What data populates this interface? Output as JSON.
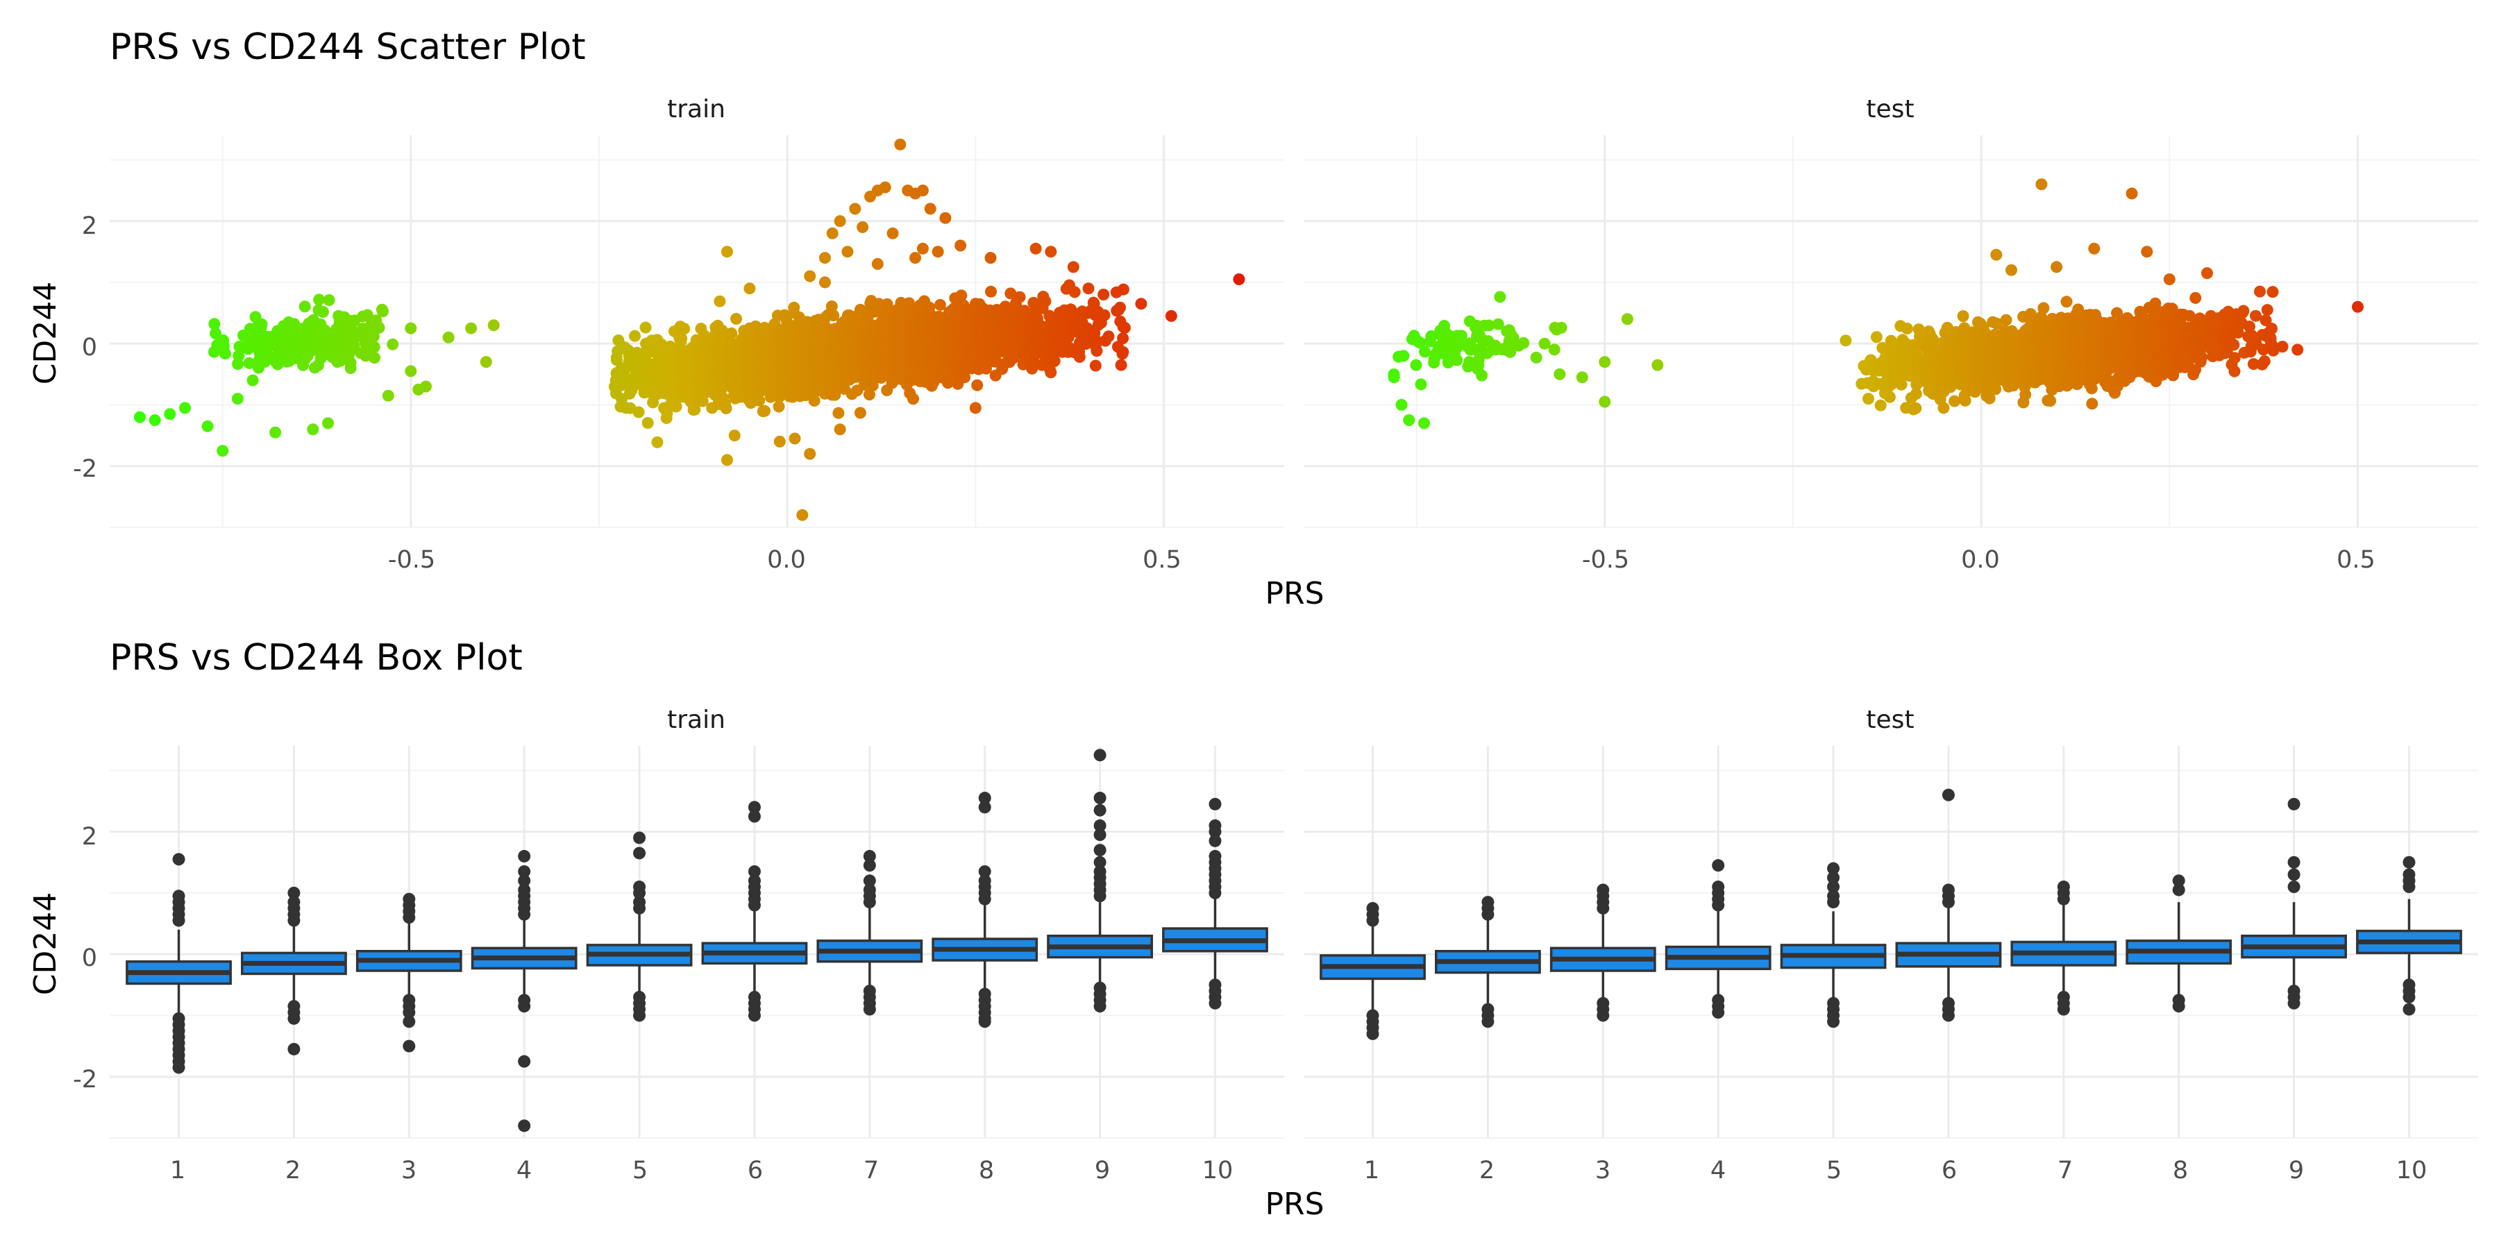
{
  "chart_data": [
    {
      "type": "scatter",
      "title": "PRS vs CD244 Scatter Plot",
      "xlabel": "PRS",
      "ylabel": "CD244",
      "xlim": [
        -0.9,
        0.66
      ],
      "ylim": [
        -3.0,
        3.4
      ],
      "x_ticks": [
        -0.5,
        0.0,
        0.5
      ],
      "x_tick_labels": [
        "-0.5",
        "0.0",
        "0.5"
      ],
      "y_ticks": [
        -2,
        0,
        2
      ],
      "y_tick_labels": [
        "-2",
        "0",
        "2"
      ],
      "grid": true,
      "legend": "none",
      "color_scale": {
        "low": "#33ff00",
        "mid": "#cfb000",
        "high": "#e41a00",
        "mapped_to": "PRS"
      },
      "panels": [
        {
          "strip": "train",
          "clusters": [
            {
              "x_range": [
                -0.75,
                -0.55
              ],
              "x_mean": -0.64,
              "slope": 1.3,
              "intercept": 0.05,
              "y_sd": 0.22,
              "n": 260
            },
            {
              "x_range": [
                -0.2,
                0.42
              ],
              "x_mean": 0.08,
              "slope": 1.2,
              "intercept": -0.15,
              "y_sd": 0.28,
              "n": 3000
            }
          ],
          "points": [
            [
              -0.86,
              -1.2
            ],
            [
              -0.84,
              -1.25
            ],
            [
              -0.82,
              -1.15
            ],
            [
              -0.8,
              -1.05
            ],
            [
              -0.77,
              -1.35
            ],
            [
              -0.75,
              -1.75
            ],
            [
              -0.73,
              -0.9
            ],
            [
              -0.71,
              -0.6
            ],
            [
              -0.68,
              -1.45
            ],
            [
              -0.66,
              -0.15
            ],
            [
              -0.63,
              -1.4
            ],
            [
              -0.61,
              -1.3
            ],
            [
              -0.58,
              -0.4
            ],
            [
              -0.56,
              -0.2
            ],
            [
              -0.53,
              -0.85
            ],
            [
              -0.5,
              -0.45
            ],
            [
              -0.49,
              -0.75
            ],
            [
              -0.48,
              -0.7
            ],
            [
              -0.5,
              0.25
            ],
            [
              -0.45,
              0.1
            ],
            [
              -0.42,
              0.25
            ],
            [
              -0.39,
              0.3
            ],
            [
              -0.4,
              -0.3
            ],
            [
              -0.2,
              -0.35
            ],
            [
              -0.19,
              -0.8
            ],
            [
              -0.18,
              0.05
            ],
            [
              -0.15,
              0.2
            ],
            [
              -0.12,
              -0.9
            ],
            [
              -0.1,
              -1.05
            ],
            [
              -0.08,
              1.5
            ],
            [
              -0.08,
              -1.9
            ],
            [
              -0.07,
              -1.5
            ],
            [
              -0.05,
              0.9
            ],
            [
              -0.03,
              -1.1
            ],
            [
              -0.01,
              -1.6
            ],
            [
              0.01,
              -1.55
            ],
            [
              0.02,
              -2.8
            ],
            [
              0.03,
              -1.8
            ],
            [
              0.03,
              1.1
            ],
            [
              0.05,
              1.4
            ],
            [
              0.05,
              1.0
            ],
            [
              0.06,
              1.8
            ],
            [
              0.07,
              2.0
            ],
            [
              0.07,
              -1.4
            ],
            [
              0.08,
              1.5
            ],
            [
              0.09,
              2.2
            ],
            [
              0.1,
              1.9
            ],
            [
              0.11,
              2.4
            ],
            [
              0.12,
              2.5
            ],
            [
              0.12,
              1.3
            ],
            [
              0.13,
              2.55
            ],
            [
              0.14,
              1.8
            ],
            [
              0.15,
              3.25
            ],
            [
              0.16,
              2.5
            ],
            [
              0.17,
              2.45
            ],
            [
              0.17,
              1.4
            ],
            [
              0.18,
              2.5
            ],
            [
              0.18,
              1.55
            ],
            [
              0.19,
              2.2
            ],
            [
              0.2,
              1.5
            ],
            [
              0.21,
              2.05
            ],
            [
              0.23,
              1.6
            ],
            [
              0.25,
              -1.05
            ],
            [
              0.27,
              1.4
            ],
            [
              0.33,
              1.55
            ],
            [
              0.35,
              1.5
            ],
            [
              0.38,
              1.25
            ],
            [
              0.4,
              0.9
            ],
            [
              0.42,
              0.8
            ],
            [
              0.44,
              0.55
            ],
            [
              0.47,
              0.65
            ],
            [
              0.51,
              0.45
            ],
            [
              0.6,
              1.05
            ]
          ]
        },
        {
          "strip": "test",
          "clusters": [
            {
              "x_range": [
                -0.77,
                -0.57
              ],
              "x_mean": -0.68,
              "slope": 1.3,
              "intercept": 0.0,
              "y_sd": 0.2,
              "n": 90
            },
            {
              "x_range": [
                -0.13,
                0.36
              ],
              "x_mean": 0.1,
              "slope": 1.1,
              "intercept": -0.15,
              "y_sd": 0.26,
              "n": 1700
            }
          ],
          "points": [
            [
              -0.78,
              -0.55
            ],
            [
              -0.77,
              -1.0
            ],
            [
              -0.76,
              -1.25
            ],
            [
              -0.74,
              -1.3
            ],
            [
              -0.72,
              0.15
            ],
            [
              -0.68,
              -0.3
            ],
            [
              -0.63,
              0.2
            ],
            [
              -0.58,
              0.0
            ],
            [
              -0.56,
              -0.5
            ],
            [
              -0.53,
              -0.55
            ],
            [
              -0.5,
              -0.95
            ],
            [
              -0.5,
              -0.3
            ],
            [
              -0.47,
              0.4
            ],
            [
              -0.43,
              -0.35
            ],
            [
              -0.18,
              0.05
            ],
            [
              -0.15,
              -0.9
            ],
            [
              -0.1,
              -1.05
            ],
            [
              -0.05,
              -1.05
            ],
            [
              0.02,
              1.45
            ],
            [
              0.04,
              1.2
            ],
            [
              0.08,
              2.6
            ],
            [
              0.1,
              1.25
            ],
            [
              0.15,
              1.55
            ],
            [
              0.2,
              2.45
            ],
            [
              0.22,
              1.5
            ],
            [
              0.25,
              1.05
            ],
            [
              0.3,
              1.15
            ],
            [
              0.37,
              0.85
            ],
            [
              0.38,
              0.55
            ],
            [
              0.4,
              -0.05
            ],
            [
              0.42,
              -0.1
            ],
            [
              0.5,
              0.6
            ]
          ]
        }
      ]
    },
    {
      "type": "box",
      "title": "PRS vs CD244 Box Plot",
      "xlabel": "PRS",
      "ylabel": "CD244",
      "categories": [
        "1",
        "2",
        "3",
        "4",
        "5",
        "6",
        "7",
        "8",
        "9",
        "10"
      ],
      "ylim": [
        -3.0,
        3.4
      ],
      "y_ticks": [
        -2,
        0,
        2
      ],
      "y_tick_labels": [
        "-2",
        "0",
        "2"
      ],
      "grid": true,
      "legend": "none",
      "fill_color": "#1e88e5",
      "line_color": "#333333",
      "panels": [
        {
          "strip": "train",
          "boxes": [
            {
              "q1": -0.48,
              "median": -0.3,
              "q3": -0.12,
              "whisker_low": -1.0,
              "whisker_high": 0.4,
              "outliers": [
                1.55,
                0.95,
                0.85,
                0.75,
                0.65,
                0.55,
                -1.05,
                -1.15,
                -1.25,
                -1.35,
                -1.45,
                -1.55,
                -1.65,
                -1.75,
                -1.85
              ]
            },
            {
              "q1": -0.32,
              "median": -0.15,
              "q3": 0.02,
              "whisker_low": -0.8,
              "whisker_high": 0.5,
              "outliers": [
                1.0,
                0.85,
                0.75,
                0.65,
                0.55,
                -0.85,
                -0.95,
                -1.05,
                -1.55
              ]
            },
            {
              "q1": -0.27,
              "median": -0.1,
              "q3": 0.05,
              "whisker_low": -0.7,
              "whisker_high": 0.5,
              "outliers": [
                0.9,
                0.8,
                0.7,
                0.6,
                -0.75,
                -0.85,
                -0.95,
                -1.1,
                -1.5
              ]
            },
            {
              "q1": -0.23,
              "median": -0.06,
              "q3": 0.1,
              "whisker_low": -0.7,
              "whisker_high": 0.6,
              "outliers": [
                1.6,
                1.35,
                1.2,
                1.05,
                0.95,
                0.85,
                0.75,
                0.65,
                -0.75,
                -0.85,
                -1.75,
                -2.8
              ]
            },
            {
              "q1": -0.18,
              "median": 0.0,
              "q3": 0.15,
              "whisker_low": -0.65,
              "whisker_high": 0.65,
              "outliers": [
                1.9,
                1.65,
                1.1,
                1.0,
                0.85,
                0.75,
                -0.7,
                -0.8,
                -0.9,
                -1.0
              ]
            },
            {
              "q1": -0.15,
              "median": 0.02,
              "q3": 0.18,
              "whisker_low": -0.65,
              "whisker_high": 0.7,
              "outliers": [
                2.4,
                2.25,
                1.35,
                1.2,
                1.1,
                1.0,
                0.9,
                0.8,
                -0.7,
                -0.8,
                -0.9,
                -1.0
              ]
            },
            {
              "q1": -0.12,
              "median": 0.05,
              "q3": 0.22,
              "whisker_low": -0.6,
              "whisker_high": 0.75,
              "outliers": [
                1.6,
                1.45,
                1.2,
                1.05,
                0.95,
                0.85,
                -0.6,
                -0.7,
                -0.8,
                -0.9
              ]
            },
            {
              "q1": -0.1,
              "median": 0.08,
              "q3": 0.25,
              "whisker_low": -0.6,
              "whisker_high": 0.8,
              "outliers": [
                2.55,
                2.4,
                1.35,
                1.2,
                1.1,
                1.0,
                0.9,
                -0.65,
                -0.75,
                -0.85,
                -0.95,
                -1.05,
                -1.1
              ]
            },
            {
              "q1": -0.05,
              "median": 0.12,
              "q3": 0.3,
              "whisker_low": -0.55,
              "whisker_high": 0.85,
              "outliers": [
                3.25,
                2.55,
                2.35,
                2.1,
                1.95,
                1.7,
                1.5,
                1.35,
                1.25,
                1.15,
                1.05,
                0.95,
                -0.55,
                -0.65,
                -0.75,
                -0.85
              ]
            },
            {
              "q1": 0.05,
              "median": 0.22,
              "q3": 0.42,
              "whisker_low": -0.45,
              "whisker_high": 0.95,
              "outliers": [
                2.45,
                2.1,
                2.0,
                1.85,
                1.6,
                1.5,
                1.4,
                1.3,
                1.2,
                1.1,
                1.0,
                -0.5,
                -0.6,
                -0.7,
                -0.8
              ]
            }
          ]
        },
        {
          "strip": "test",
          "boxes": [
            {
              "q1": -0.4,
              "median": -0.2,
              "q3": -0.02,
              "whisker_low": -0.95,
              "whisker_high": 0.55,
              "outliers": [
                0.75,
                0.65,
                0.55,
                -1.0,
                -1.1,
                -1.2,
                -1.3
              ]
            },
            {
              "q1": -0.3,
              "median": -0.12,
              "q3": 0.05,
              "whisker_low": -0.8,
              "whisker_high": 0.6,
              "outliers": [
                0.85,
                0.75,
                0.65,
                -0.9,
                -1.0,
                -1.1
              ]
            },
            {
              "q1": -0.27,
              "median": -0.08,
              "q3": 0.1,
              "whisker_low": -0.75,
              "whisker_high": 0.65,
              "outliers": [
                1.05,
                0.95,
                0.85,
                0.75,
                -0.8,
                -0.9,
                -1.0
              ]
            },
            {
              "q1": -0.24,
              "median": -0.05,
              "q3": 0.12,
              "whisker_low": -0.7,
              "whisker_high": 0.7,
              "outliers": [
                1.45,
                1.1,
                1.0,
                0.9,
                0.8,
                -0.75,
                -0.85,
                -0.95
              ]
            },
            {
              "q1": -0.22,
              "median": -0.02,
              "q3": 0.15,
              "whisker_low": -0.75,
              "whisker_high": 0.7,
              "outliers": [
                1.4,
                1.25,
                1.1,
                0.95,
                0.85,
                -0.8,
                -0.9,
                -1.0,
                -1.1
              ]
            },
            {
              "q1": -0.2,
              "median": 0.0,
              "q3": 0.18,
              "whisker_low": -0.75,
              "whisker_high": 0.75,
              "outliers": [
                2.6,
                1.05,
                0.95,
                0.85,
                -0.8,
                -0.9,
                -1.0
              ]
            },
            {
              "q1": -0.18,
              "median": 0.02,
              "q3": 0.2,
              "whisker_low": -0.65,
              "whisker_high": 0.8,
              "outliers": [
                1.1,
                1.0,
                0.9,
                -0.7,
                -0.8,
                -0.9
              ]
            },
            {
              "q1": -0.15,
              "median": 0.05,
              "q3": 0.22,
              "whisker_low": -0.7,
              "whisker_high": 0.85,
              "outliers": [
                1.2,
                1.05,
                -0.75,
                -0.85
              ]
            },
            {
              "q1": -0.05,
              "median": 0.12,
              "q3": 0.3,
              "whisker_low": -0.55,
              "whisker_high": 0.85,
              "outliers": [
                2.45,
                1.5,
                1.3,
                1.1,
                -0.6,
                -0.7,
                -0.8
              ]
            },
            {
              "q1": 0.02,
              "median": 0.2,
              "q3": 0.38,
              "whisker_low": -0.45,
              "whisker_high": 0.9,
              "outliers": [
                1.5,
                1.3,
                1.2,
                1.1,
                -0.5,
                -0.6,
                -0.7,
                -0.9
              ]
            }
          ]
        }
      ]
    }
  ]
}
